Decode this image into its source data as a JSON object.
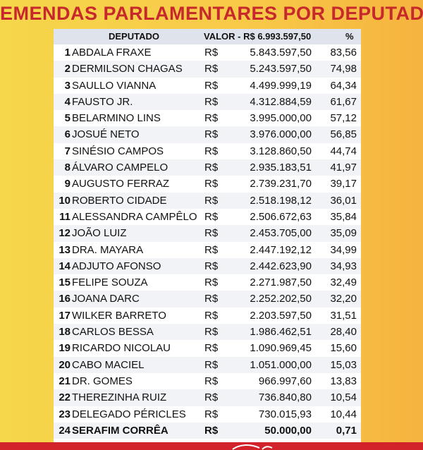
{
  "title": "EMENDAS PARLAMENTARES POR DEPUTADO",
  "header": {
    "deputado": "DEPUTADO",
    "valor": "VALOR - R$ 6.993.597,50",
    "pct": "%"
  },
  "rows": [
    {
      "n": "1",
      "name": "ABDALA FRAXE",
      "cur": "R$",
      "val": "5.843.597,50",
      "pct": "83,56"
    },
    {
      "n": "2",
      "name": "DERMILSON CHAGAS",
      "cur": "R$",
      "val": "5.243.597,50",
      "pct": "74,98"
    },
    {
      "n": "3",
      "name": "SAULLO VIANNA",
      "cur": "R$",
      "val": "4.499.999,19",
      "pct": "64,34"
    },
    {
      "n": "4",
      "name": "FAUSTO JR.",
      "cur": "R$",
      "val": "4.312.884,59",
      "pct": "61,67"
    },
    {
      "n": "5",
      "name": "BELARMINO LINS",
      "cur": "R$",
      "val": "3.995.000,00",
      "pct": "57,12"
    },
    {
      "n": "6",
      "name": "JOSUÉ NETO",
      "cur": "R$",
      "val": "3.976.000,00",
      "pct": "56,85"
    },
    {
      "n": "7",
      "name": "SINÉSIO CAMPOS",
      "cur": "R$",
      "val": "3.128.860,50",
      "pct": "44,74"
    },
    {
      "n": "8",
      "name": "ÁLVARO CAMPELO",
      "cur": "R$",
      "val": "2.935.183,51",
      "pct": "41,97"
    },
    {
      "n": "9",
      "name": "AUGUSTO FERRAZ",
      "cur": "R$",
      "val": "2.739.231,70",
      "pct": "39,17"
    },
    {
      "n": "10",
      "name": "ROBERTO CIDADE",
      "cur": "R$",
      "val": "2.518.198,12",
      "pct": "36,01"
    },
    {
      "n": "11",
      "name": "ALESSANDRA CAMPÊLO",
      "cur": "R$",
      "val": "2.506.672,63",
      "pct": "35,84"
    },
    {
      "n": "12",
      "name": "JOÃO LUIZ",
      "cur": "R$",
      "val": "2.453.705,00",
      "pct": "35,09"
    },
    {
      "n": "13",
      "name": "DRA. MAYARA",
      "cur": "R$",
      "val": "2.447.192,12",
      "pct": "34,99"
    },
    {
      "n": "14",
      "name": "ADJUTO AFONSO",
      "cur": "R$",
      "val": "2.442.623,90",
      "pct": "34,93"
    },
    {
      "n": "15",
      "name": "FELIPE SOUZA",
      "cur": "R$",
      "val": "2.271.987,50",
      "pct": "32,49"
    },
    {
      "n": "16",
      "name": "JOANA DARC",
      "cur": "R$",
      "val": "2.252.202,50",
      "pct": "32,20"
    },
    {
      "n": "17",
      "name": "WILKER BARRETO",
      "cur": "R$",
      "val": "2.203.597,50",
      "pct": "31,51"
    },
    {
      "n": "18",
      "name": "CARLOS BESSA",
      "cur": "R$",
      "val": "1.986.462,51",
      "pct": "28,40"
    },
    {
      "n": "19",
      "name": "RICARDO NICOLAU",
      "cur": "R$",
      "val": "1.090.969,45",
      "pct": "15,60"
    },
    {
      "n": "20",
      "name": "CABO MACIEL",
      "cur": "R$",
      "val": "1.051.000,00",
      "pct": "15,03"
    },
    {
      "n": "21",
      "name": "DR. GOMES",
      "cur": "R$",
      "val": "966.997,60",
      "pct": "13,83"
    },
    {
      "n": "22",
      "name": "THEREZINHA RUIZ",
      "cur": "R$",
      "val": "736.840,80",
      "pct": "10,54"
    },
    {
      "n": "23",
      "name": "DELEGADO PÉRICLES",
      "cur": "R$",
      "val": "730.015,93",
      "pct": "10,44"
    },
    {
      "n": "24",
      "name": "SERAFIM CORRÊA",
      "cur": "R$",
      "val": "50.000,00",
      "pct": "0,71",
      "bold": true
    }
  ],
  "colors": {
    "title": "#c6282b",
    "bottom_bar": "#d2232a",
    "header_bg": "#dfe3ec"
  }
}
